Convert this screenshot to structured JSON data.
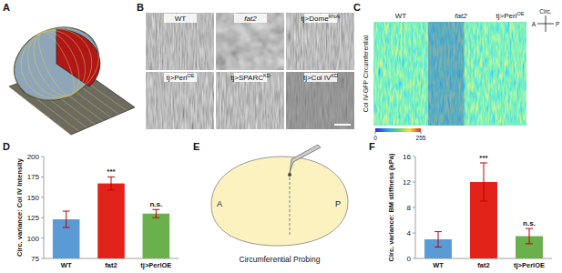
{
  "panel_labels": [
    "A",
    "B",
    "C",
    "D",
    "E",
    "F"
  ],
  "panel_b": {
    "images": [
      {
        "text": "WT"
      },
      {
        "text": "fat2",
        "italic": true
      },
      {
        "text": "tj>Dome",
        "sup": "RNAi"
      },
      {
        "text": "tj>Perl",
        "sup": "OE"
      },
      {
        "text": "tj>SPARC",
        "sup": "KD"
      },
      {
        "text": "tj>Col IV",
        "sup": "KD"
      }
    ]
  },
  "panel_c": {
    "ylabel": "Col IV-GFP Circumferential",
    "strips": [
      {
        "text": "WT"
      },
      {
        "text": "fat2",
        "italic": true
      },
      {
        "text": "tj>Perl",
        "sup": "OE"
      }
    ],
    "colorbar": {
      "range": [
        0,
        255
      ],
      "ticks": [
        0,
        255
      ]
    },
    "compass": {
      "vertical": "Circ.",
      "left": "A",
      "right": "P"
    }
  },
  "panel_e": {
    "left": "A",
    "right": "P",
    "caption": "Circumferential Probing"
  },
  "chart_data": [
    {
      "type": "bar",
      "ylabel": "Circ. variance: Col IV Intensity",
      "categories": [
        "WT",
        "fat2",
        "tj>PerlOE"
      ],
      "values": [
        123,
        167,
        130
      ],
      "errors": [
        10,
        8,
        5
      ],
      "colors": [
        "#5b9bd5",
        "#e2231a",
        "#6ab04c"
      ],
      "annotations": [
        null,
        "***",
        "n.s."
      ],
      "ylim": [
        75,
        200
      ],
      "yticks": [
        75,
        100,
        125,
        150,
        175,
        200
      ]
    },
    {
      "type": "bar",
      "ylabel": "Circ. variance: BM stiffness (kPa)",
      "categories": [
        "WT",
        "fat2",
        "tj>PerlOE"
      ],
      "values": [
        3,
        12,
        3.5
      ],
      "errors": [
        1.2,
        3,
        1.2
      ],
      "colors": [
        "#5b9bd5",
        "#e2231a",
        "#6ab04c"
      ],
      "annotations": [
        null,
        "***",
        "n.s."
      ],
      "ylim": [
        0,
        16
      ],
      "yticks": [
        0,
        4,
        8,
        12,
        16
      ]
    }
  ]
}
